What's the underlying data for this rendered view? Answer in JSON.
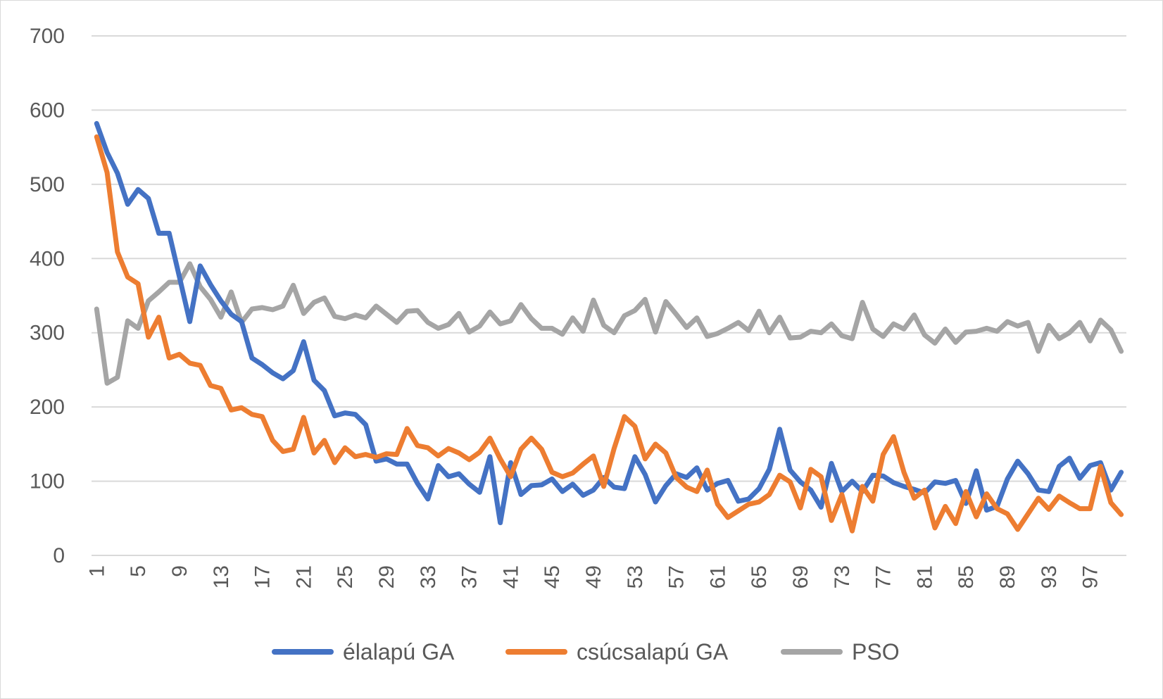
{
  "chart_data": {
    "type": "line",
    "title": "",
    "xlabel": "",
    "ylabel": "",
    "ylim": [
      0,
      700
    ],
    "yticks": [
      0,
      100,
      200,
      300,
      400,
      500,
      600,
      700
    ],
    "x": [
      1,
      2,
      3,
      4,
      5,
      6,
      7,
      8,
      9,
      10,
      11,
      12,
      13,
      14,
      15,
      16,
      17,
      18,
      19,
      20,
      21,
      22,
      23,
      24,
      25,
      26,
      27,
      28,
      29,
      30,
      31,
      32,
      33,
      34,
      35,
      36,
      37,
      38,
      39,
      40,
      41,
      42,
      43,
      44,
      45,
      46,
      47,
      48,
      49,
      50,
      51,
      52,
      53,
      54,
      55,
      56,
      57,
      58,
      59,
      60,
      61,
      62,
      63,
      64,
      65,
      66,
      67,
      68,
      69,
      70,
      71,
      72,
      73,
      74,
      75,
      76,
      77,
      78,
      79,
      80,
      81,
      82,
      83,
      84,
      85,
      86,
      87,
      88,
      89,
      90,
      91,
      92,
      93,
      94,
      95,
      96,
      97,
      98,
      99,
      100
    ],
    "xtick_labels": [
      "1",
      "5",
      "9",
      "13",
      "17",
      "21",
      "25",
      "29",
      "33",
      "37",
      "41",
      "45",
      "49",
      "53",
      "57",
      "61",
      "65",
      "69",
      "73",
      "77",
      "81",
      "85",
      "89",
      "93",
      "97"
    ],
    "grid": true,
    "legend_position": "bottom",
    "series": [
      {
        "name": "élalapú GA",
        "color": "#4472C4",
        "values": [
          582,
          543,
          515,
          473,
          493,
          481,
          434,
          434,
          375,
          315,
          390,
          365,
          343,
          325,
          315,
          266,
          257,
          246,
          238,
          249,
          288,
          236,
          222,
          188,
          192,
          190,
          176,
          127,
          130,
          123,
          123,
          97,
          76,
          121,
          106,
          110,
          96,
          85,
          133,
          44,
          125,
          82,
          94,
          95,
          103,
          86,
          96,
          81,
          88,
          105,
          92,
          90,
          133,
          109,
          72,
          94,
          110,
          105,
          118,
          88,
          97,
          101,
          73,
          76,
          90,
          116,
          170,
          115,
          99,
          88,
          65,
          124,
          86,
          100,
          86,
          108,
          107,
          98,
          93,
          89,
          84,
          99,
          97,
          101,
          70,
          114,
          61,
          66,
          103,
          127,
          110,
          88,
          86,
          120,
          131,
          104,
          121,
          125,
          88,
          112
        ]
      },
      {
        "name": "csúcsalapú GA",
        "color": "#ED7D31",
        "values": [
          564,
          516,
          409,
          375,
          366,
          294,
          321,
          266,
          271,
          259,
          256,
          229,
          225,
          196,
          199,
          190,
          187,
          155,
          140,
          143,
          186,
          138,
          155,
          125,
          145,
          133,
          136,
          132,
          137,
          136,
          171,
          148,
          145,
          134,
          144,
          138,
          129,
          139,
          158,
          130,
          106,
          143,
          158,
          143,
          112,
          106,
          111,
          123,
          134,
          93,
          144,
          187,
          174,
          130,
          150,
          138,
          105,
          92,
          86,
          115,
          69,
          51,
          60,
          69,
          72,
          82,
          108,
          99,
          64,
          116,
          106,
          47,
          82,
          33,
          93,
          73,
          136,
          160,
          112,
          77,
          88,
          37,
          66,
          43,
          86,
          52,
          83,
          63,
          56,
          35,
          56,
          77,
          62,
          80,
          71,
          63,
          63,
          120,
          71,
          55
        ]
      },
      {
        "name": "PSO",
        "color": "#A5A5A5",
        "values": [
          332,
          232,
          240,
          316,
          306,
          343,
          355,
          368,
          368,
          393,
          362,
          345,
          321,
          355,
          314,
          332,
          334,
          331,
          336,
          364,
          326,
          341,
          347,
          322,
          319,
          324,
          320,
          336,
          325,
          314,
          329,
          330,
          314,
          306,
          311,
          326,
          301,
          309,
          328,
          312,
          316,
          338,
          319,
          306,
          306,
          298,
          320,
          302,
          344,
          310,
          300,
          323,
          330,
          345,
          301,
          342,
          325,
          307,
          320,
          295,
          299,
          306,
          314,
          303,
          329,
          300,
          321,
          293,
          294,
          302,
          300,
          312,
          296,
          292,
          341,
          305,
          295,
          312,
          305,
          324,
          297,
          286,
          305,
          287,
          301,
          302,
          306,
          302,
          315,
          309,
          314,
          275,
          310,
          292,
          300,
          314,
          289,
          317,
          304,
          275
        ]
      }
    ]
  }
}
